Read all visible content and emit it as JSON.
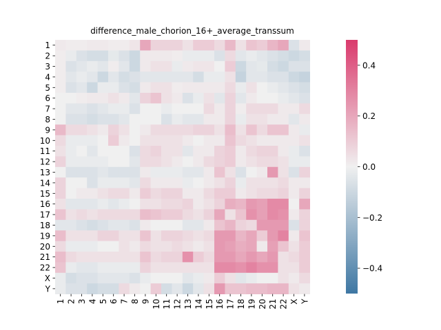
{
  "chart_data": {
    "type": "heatmap",
    "title": "difference_male_chorion_16+_average_transsum",
    "xlabel": "",
    "ylabel": "",
    "rows": [
      "1",
      "2",
      "3",
      "4",
      "5",
      "6",
      "7",
      "8",
      "9",
      "10",
      "11",
      "12",
      "13",
      "14",
      "15",
      "16",
      "17",
      "18",
      "19",
      "20",
      "21",
      "22",
      "X",
      "Y"
    ],
    "cols": [
      "1",
      "2",
      "3",
      "4",
      "5",
      "6",
      "7",
      "8",
      "9",
      "10",
      "11",
      "12",
      "13",
      "14",
      "15",
      "16",
      "17",
      "18",
      "19",
      "20",
      "21",
      "22",
      "X",
      "Y"
    ],
    "vmin": -0.5,
    "vmax": 0.5,
    "colorbar_ticks": [
      -0.4,
      -0.2,
      0.0,
      0.2,
      0.4
    ],
    "colorbar_tick_labels": [
      "−0.4",
      "−0.2",
      "0.0",
      "0.2",
      "0.4"
    ],
    "colormap": {
      "negative": "#3e77a3",
      "center": "#f0f0f0",
      "positive": "#da3a6c"
    },
    "values": [
      [
        0.02,
        0.01,
        0.01,
        0.02,
        0.02,
        0.01,
        0.01,
        0.03,
        0.2,
        0.08,
        0.08,
        0.08,
        0.04,
        0.1,
        0.1,
        0.06,
        0.15,
        0.04,
        0.12,
        0.1,
        0.16,
        0.2,
        -0.06,
        0.02
      ],
      [
        0.01,
        -0.02,
        -0.06,
        -0.08,
        -0.08,
        -0.03,
        -0.06,
        -0.1,
        0.02,
        0.02,
        0.02,
        0.01,
        -0.02,
        -0.02,
        -0.02,
        -0.06,
        0.06,
        -0.04,
        -0.02,
        -0.04,
        -0.06,
        -0.08,
        -0.1,
        -0.08
      ],
      [
        0.01,
        -0.06,
        -0.04,
        -0.02,
        -0.04,
        0.01,
        -0.04,
        -0.1,
        0.02,
        0.04,
        0.04,
        -0.02,
        0.02,
        0.03,
        0.03,
        0.0,
        0.1,
        -0.1,
        -0.04,
        -0.03,
        -0.08,
        -0.1,
        -0.06,
        -0.06
      ],
      [
        0.01,
        -0.04,
        -0.02,
        -0.04,
        -0.1,
        -0.04,
        -0.08,
        -0.06,
        -0.04,
        -0.04,
        -0.04,
        -0.04,
        -0.04,
        -0.08,
        -0.02,
        -0.02,
        0.04,
        -0.12,
        -0.04,
        -0.04,
        -0.06,
        -0.06,
        -0.1,
        -0.12
      ],
      [
        0.01,
        -0.06,
        -0.04,
        -0.1,
        -0.02,
        -0.02,
        -0.06,
        -0.08,
        0.02,
        0.04,
        0.04,
        0.01,
        0.02,
        0.02,
        0.02,
        0.02,
        0.06,
        -0.02,
        0.04,
        0.0,
        -0.02,
        -0.04,
        -0.06,
        -0.08
      ],
      [
        0.0,
        0.0,
        0.01,
        0.02,
        0.02,
        0.04,
        0.02,
        -0.04,
        0.08,
        0.12,
        0.04,
        0.02,
        -0.06,
        -0.02,
        0.04,
        -0.04,
        0.08,
        -0.04,
        0.02,
        0.0,
        0.0,
        -0.02,
        -0.04,
        -0.06
      ],
      [
        0.0,
        -0.04,
        -0.04,
        -0.06,
        -0.04,
        -0.02,
        -0.02,
        -0.06,
        0.0,
        0.0,
        -0.02,
        0.0,
        0.0,
        0.0,
        0.06,
        0.02,
        0.08,
        0.01,
        0.06,
        0.06,
        0.06,
        0.02,
        0.02,
        0.06
      ],
      [
        0.0,
        -0.06,
        -0.06,
        -0.08,
        -0.06,
        -0.06,
        -0.04,
        0.0,
        0.0,
        0.0,
        -0.06,
        -0.02,
        -0.04,
        -0.04,
        0.02,
        0.02,
        0.08,
        -0.02,
        0.04,
        0.04,
        0.02,
        0.02,
        -0.04,
        0.02
      ],
      [
        0.15,
        0.06,
        0.06,
        0.04,
        0.02,
        0.08,
        0.04,
        0.0,
        0.02,
        0.06,
        0.06,
        0.06,
        0.06,
        0.08,
        0.08,
        0.04,
        0.14,
        0.04,
        0.12,
        0.06,
        0.12,
        0.12,
        0.02,
        -0.02
      ],
      [
        0.06,
        -0.02,
        -0.02,
        -0.02,
        0.0,
        0.1,
        0.02,
        0.0,
        0.04,
        0.04,
        0.04,
        0.04,
        0.02,
        0.0,
        0.02,
        0.02,
        0.12,
        0.06,
        0.04,
        0.02,
        0.02,
        0.02,
        0.02,
        0.04
      ],
      [
        0.04,
        -0.02,
        0.0,
        -0.04,
        0.0,
        0.0,
        0.0,
        -0.06,
        0.06,
        0.08,
        0.04,
        0.04,
        -0.04,
        0.02,
        0.02,
        0.08,
        0.1,
        0.02,
        0.06,
        0.08,
        0.08,
        0.02,
        -0.02,
        -0.06
      ],
      [
        0.08,
        -0.02,
        -0.02,
        -0.02,
        -0.02,
        0.0,
        0.0,
        -0.04,
        0.06,
        0.06,
        0.04,
        0.02,
        0.0,
        0.02,
        0.06,
        0.08,
        0.1,
        0.02,
        0.04,
        0.06,
        0.06,
        0.04,
        -0.02,
        -0.02
      ],
      [
        0.0,
        -0.06,
        -0.06,
        -0.06,
        -0.04,
        -0.06,
        -0.06,
        -0.06,
        0.02,
        -0.02,
        -0.02,
        -0.02,
        -0.04,
        -0.04,
        0.02,
        0.12,
        0.04,
        -0.06,
        0.0,
        0.02,
        0.24,
        0.04,
        -0.06,
        0.08
      ],
      [
        0.08,
        0.0,
        0.0,
        -0.06,
        -0.02,
        -0.02,
        -0.02,
        -0.04,
        0.06,
        0.02,
        0.02,
        0.02,
        -0.02,
        0.0,
        0.02,
        0.04,
        0.08,
        -0.02,
        0.04,
        0.04,
        0.04,
        0.06,
        0.02,
        0.02
      ],
      [
        0.08,
        0.0,
        0.02,
        0.02,
        0.04,
        0.06,
        0.06,
        0.02,
        0.1,
        0.06,
        0.08,
        0.08,
        0.02,
        0.02,
        0.06,
        0.1,
        0.1,
        0.02,
        0.04,
        0.06,
        0.06,
        0.08,
        0.02,
        0.08
      ],
      [
        0.04,
        -0.04,
        -0.04,
        -0.04,
        -0.02,
        -0.04,
        -0.02,
        0.0,
        0.04,
        0.04,
        0.06,
        0.06,
        0.08,
        0.02,
        0.04,
        0.08,
        0.18,
        0.16,
        0.24,
        0.22,
        0.28,
        0.28,
        0.0,
        0.2
      ],
      [
        0.12,
        0.04,
        0.06,
        0.04,
        0.06,
        0.06,
        0.06,
        0.06,
        0.14,
        0.12,
        0.1,
        0.1,
        0.06,
        0.04,
        0.08,
        0.2,
        0.04,
        0.12,
        0.26,
        0.22,
        0.28,
        0.26,
        0.02,
        0.08
      ],
      [
        -0.04,
        -0.04,
        -0.06,
        -0.08,
        -0.06,
        -0.04,
        -0.04,
        -0.06,
        0.02,
        0.0,
        0.0,
        0.0,
        -0.04,
        -0.04,
        0.02,
        0.12,
        0.16,
        0.08,
        0.06,
        0.24,
        0.24,
        0.24,
        -0.06,
        0.08
      ],
      [
        0.14,
        0.04,
        0.04,
        0.04,
        0.08,
        0.08,
        0.04,
        0.04,
        0.12,
        0.04,
        0.08,
        0.08,
        0.06,
        0.04,
        0.06,
        0.24,
        0.24,
        0.16,
        0.2,
        0.1,
        0.24,
        0.3,
        0.02,
        0.12
      ],
      [
        0.06,
        -0.02,
        -0.02,
        -0.02,
        0.0,
        0.0,
        0.04,
        0.02,
        0.06,
        0.04,
        0.04,
        0.06,
        0.04,
        0.02,
        0.04,
        0.24,
        0.22,
        0.18,
        0.2,
        0.02,
        0.22,
        0.12,
        0.04,
        0.1
      ],
      [
        0.14,
        0.06,
        0.04,
        0.04,
        0.04,
        0.04,
        0.04,
        0.04,
        0.12,
        0.06,
        0.08,
        0.08,
        0.26,
        0.1,
        0.06,
        0.24,
        0.24,
        0.2,
        0.24,
        0.2,
        0.24,
        0.04,
        0.06,
        0.1
      ],
      [
        0.12,
        -0.02,
        -0.04,
        -0.04,
        -0.02,
        -0.02,
        -0.02,
        -0.02,
        0.08,
        0.04,
        0.04,
        0.04,
        0.04,
        0.04,
        0.04,
        0.28,
        0.28,
        0.26,
        0.3,
        0.26,
        0.26,
        0.04,
        0.04,
        0.1
      ],
      [
        -0.02,
        -0.08,
        -0.06,
        -0.06,
        -0.04,
        -0.04,
        -0.04,
        -0.06,
        -0.02,
        0.0,
        0.0,
        0.0,
        -0.04,
        -0.02,
        0.02,
        0.1,
        0.04,
        -0.04,
        -0.02,
        0.0,
        0.0,
        0.04,
        0.02,
        0.06
      ],
      [
        -0.02,
        -0.06,
        -0.06,
        -0.1,
        -0.08,
        -0.08,
        0.06,
        0.02,
        0.0,
        0.1,
        -0.08,
        -0.04,
        -0.1,
        -0.04,
        0.04,
        0.24,
        0.12,
        0.12,
        0.14,
        0.14,
        0.16,
        0.16,
        0.04,
        0.02
      ]
    ]
  }
}
